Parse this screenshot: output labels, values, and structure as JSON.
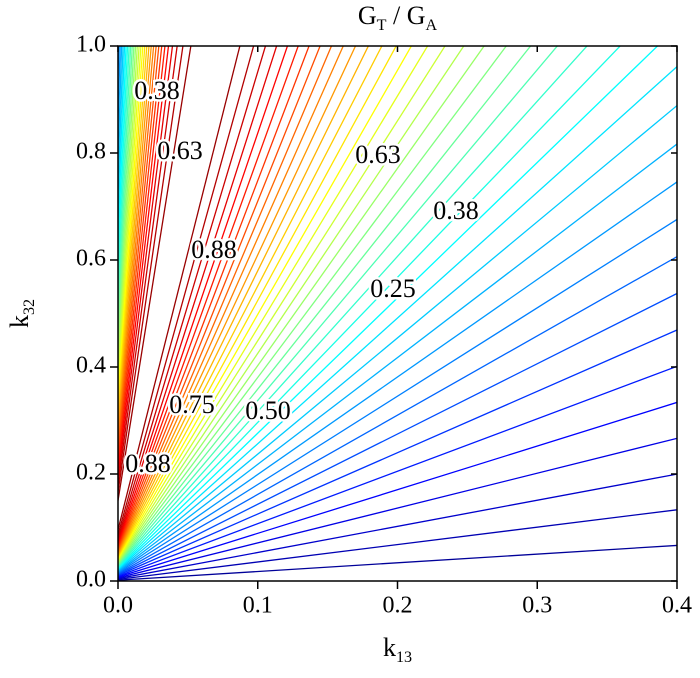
{
  "chart_data": {
    "type": "contour",
    "title": [
      {
        "text": "G"
      },
      {
        "text": "T",
        "sub": true
      },
      {
        "text": " / G"
      },
      {
        "text": "A",
        "sub": true
      }
    ],
    "xlabel": [
      {
        "text": "k"
      },
      {
        "text": "13",
        "sub": true
      }
    ],
    "ylabel": [
      {
        "text": "k"
      },
      {
        "text": "32",
        "sub": true
      }
    ],
    "xlim": [
      0,
      0.4
    ],
    "ylim": [
      0,
      1
    ],
    "xticks": [
      {
        "value": 0,
        "label": "0.0"
      },
      0.1,
      0.2,
      0.3,
      0.4
    ],
    "yticks": [
      {
        "value": 0,
        "label": "0.0"
      },
      0.2,
      0.4,
      0.6,
      0.8,
      {
        "value": 1,
        "label": "1.0"
      }
    ],
    "colormap": "jet",
    "levels": [
      0.025,
      0.05,
      0.075,
      0.1,
      0.125,
      0.15,
      0.175,
      0.2,
      0.225,
      0.25,
      0.275,
      0.3,
      0.325,
      0.35,
      0.375,
      0.4,
      0.425,
      0.45,
      0.475,
      0.5,
      0.525,
      0.55,
      0.575,
      0.6,
      0.625,
      0.65,
      0.675,
      0.7,
      0.725,
      0.75,
      0.775,
      0.8,
      0.825,
      0.85,
      0.875,
      0.9,
      0.925,
      0.95,
      0.975
    ],
    "contour_labels": [
      {
        "value": 0.375,
        "label": "0.38"
      },
      {
        "value": 0.625,
        "label": "0.63"
      },
      {
        "value": 0.875,
        "label": "0.88"
      },
      {
        "value": 0.625,
        "label": "0.63"
      },
      {
        "value": 0.375,
        "label": "0.38"
      },
      {
        "value": 0.875,
        "label": "0.88"
      },
      0.25,
      0.75,
      {
        "value": 0.5,
        "label": "0.50"
      }
    ]
  }
}
